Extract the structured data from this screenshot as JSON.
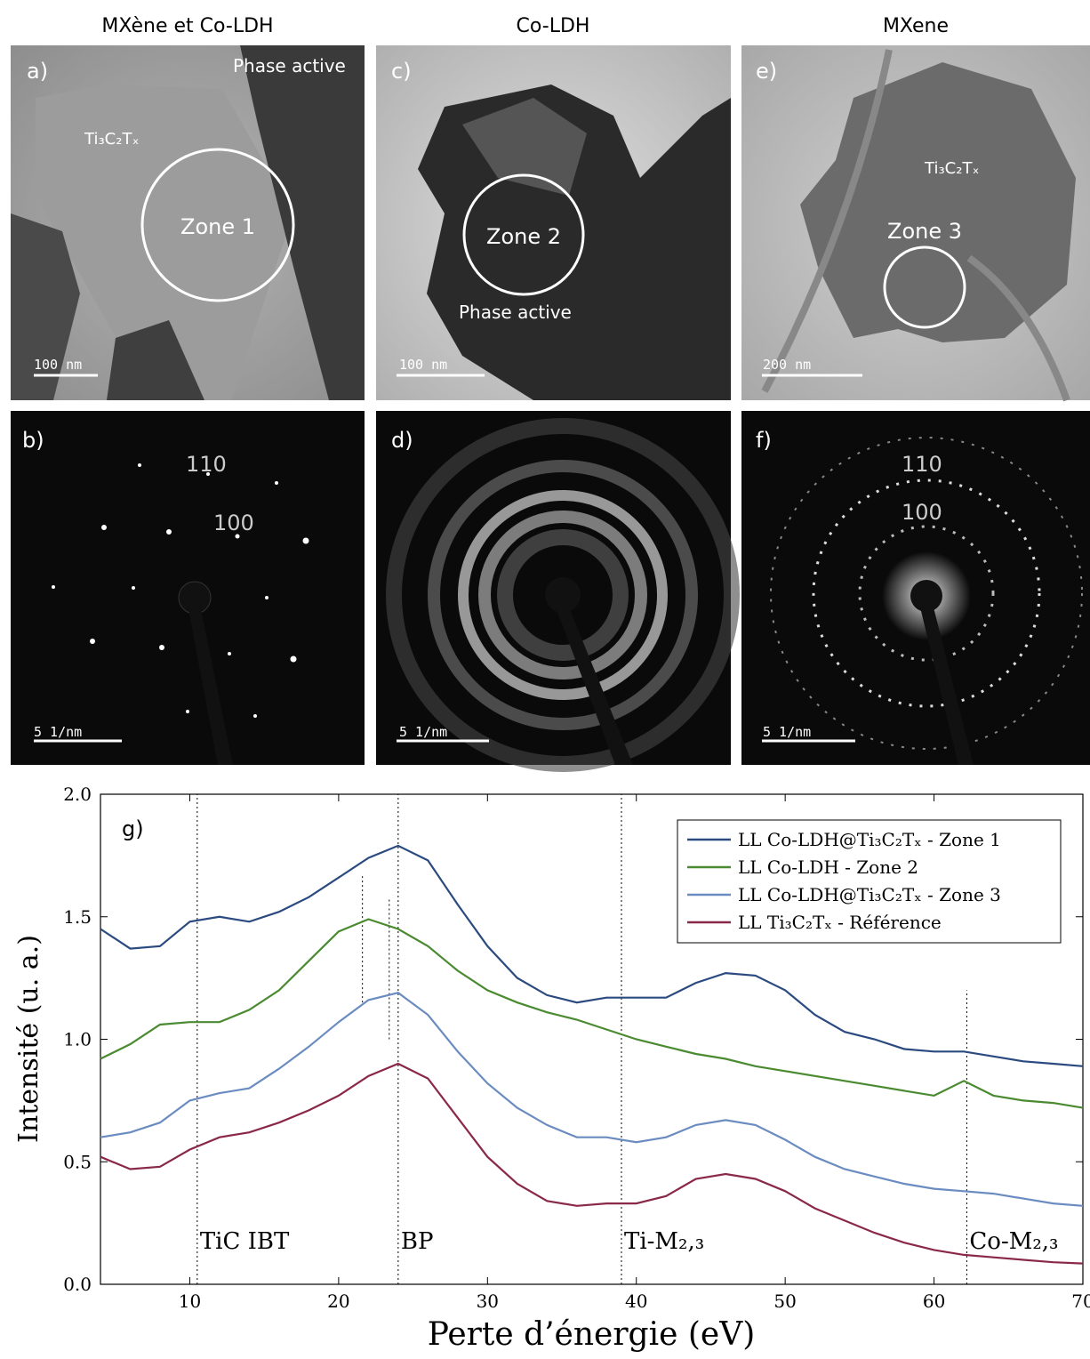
{
  "columns": [
    {
      "title": "MXène et Co-LDH",
      "image": {
        "label": "a)",
        "phase": "Phase active",
        "material": "Ti₃C₂Tₓ",
        "zone": "Zone 1",
        "scale": "100 nm"
      },
      "diffraction": {
        "label": "b)",
        "reflections": [
          "110",
          "100"
        ],
        "scale": "5 1/nm"
      }
    },
    {
      "title": "Co-LDH",
      "image": {
        "label": "c)",
        "zone": "Zone 2",
        "phase": "Phase active",
        "scale": "100 nm"
      },
      "diffraction": {
        "label": "d)",
        "scale": "5 1/nm"
      }
    },
    {
      "title": "MXene",
      "image": {
        "label": "e)",
        "material": "Ti₃C₂Tₓ",
        "zone": "Zone 3",
        "scale": "200 nm"
      },
      "diffraction": {
        "label": "f)",
        "reflections": [
          "110",
          "100"
        ],
        "scale": "5 1/nm"
      }
    }
  ],
  "chart_data": {
    "type": "line",
    "panel_label": "g)",
    "x_label": "Perte d’énergie (eV)",
    "y_label": "Intensité (u. a.)",
    "xlim": [
      4,
      70
    ],
    "xticks": [
      10,
      20,
      30,
      40,
      50,
      60,
      70
    ],
    "ylim": [
      0,
      2
    ],
    "yticks": [
      {
        "value": 0,
        "label": "0.0"
      },
      0.5,
      {
        "value": 1,
        "label": "1.0"
      },
      1.5,
      {
        "value": 2,
        "label": "2.0"
      }
    ],
    "legend": "upper right",
    "x": [
      4,
      6,
      8,
      10,
      12,
      14,
      16,
      18,
      20,
      22,
      24,
      26,
      28,
      30,
      32,
      34,
      36,
      38,
      40,
      42,
      44,
      46,
      48,
      50,
      52,
      54,
      56,
      58,
      60,
      62,
      64,
      66,
      68,
      70
    ],
    "series": [
      {
        "name": "LL Co-LDH@Ti₃C₂Tₓ - Zone 1",
        "color": "#2b4a80",
        "values": [
          1.45,
          1.37,
          1.38,
          1.48,
          1.5,
          1.48,
          1.52,
          1.58,
          1.66,
          1.74,
          1.79,
          1.73,
          1.55,
          1.38,
          1.25,
          1.18,
          1.15,
          1.17,
          1.17,
          1.17,
          1.23,
          1.27,
          1.26,
          1.2,
          1.1,
          1.03,
          1.0,
          0.96,
          0.95,
          0.95,
          0.93,
          0.91,
          0.9,
          0.89
        ]
      },
      {
        "name": "LL Co-LDH - Zone 2",
        "color": "#4a8a30",
        "values": [
          0.92,
          0.98,
          1.06,
          1.07,
          1.07,
          1.12,
          1.2,
          1.32,
          1.44,
          1.49,
          1.45,
          1.38,
          1.28,
          1.2,
          1.15,
          1.11,
          1.08,
          1.04,
          1.0,
          0.97,
          0.94,
          0.92,
          0.89,
          0.87,
          0.85,
          0.83,
          0.81,
          0.79,
          0.77,
          0.83,
          0.77,
          0.75,
          0.74,
          0.72
        ]
      },
      {
        "name": "LL Co-LDH@Ti₃C₂Tₓ - Zone 3",
        "color": "#6a8cc0",
        "values": [
          0.6,
          0.62,
          0.66,
          0.75,
          0.78,
          0.8,
          0.88,
          0.97,
          1.07,
          1.16,
          1.19,
          1.1,
          0.95,
          0.82,
          0.72,
          0.65,
          0.6,
          0.6,
          0.58,
          0.6,
          0.65,
          0.67,
          0.65,
          0.59,
          0.52,
          0.47,
          0.44,
          0.41,
          0.39,
          0.38,
          0.37,
          0.35,
          0.33,
          0.32
        ]
      },
      {
        "name": "LL Ti₃C₂Tₓ - Référence",
        "color": "#8a2848",
        "values": [
          0.52,
          0.47,
          0.48,
          0.55,
          0.6,
          0.62,
          0.66,
          0.71,
          0.77,
          0.85,
          0.9,
          0.84,
          0.68,
          0.52,
          0.41,
          0.34,
          0.32,
          0.33,
          0.33,
          0.36,
          0.43,
          0.45,
          0.43,
          0.38,
          0.31,
          0.26,
          0.21,
          0.17,
          0.14,
          0.12,
          0.11,
          0.1,
          0.09,
          0.085
        ]
      }
    ],
    "annotations": [
      {
        "text": "TiC IBT",
        "x": 10.5,
        "y": [
          0,
          2
        ]
      },
      {
        "text": "BP",
        "x": 24,
        "y": [
          0,
          2
        ]
      },
      {
        "text": "Ti-M₂,₃",
        "x": 39,
        "y": [
          0,
          2
        ]
      },
      {
        "text": "Co-M₂,₃",
        "x": 62.2,
        "y": [
          0,
          1.2
        ]
      }
    ],
    "guides": [
      {
        "x": 21.6,
        "y": [
          1.15,
          1.67
        ]
      },
      {
        "x": 23.4,
        "y": [
          1.0,
          1.57
        ]
      }
    ]
  }
}
